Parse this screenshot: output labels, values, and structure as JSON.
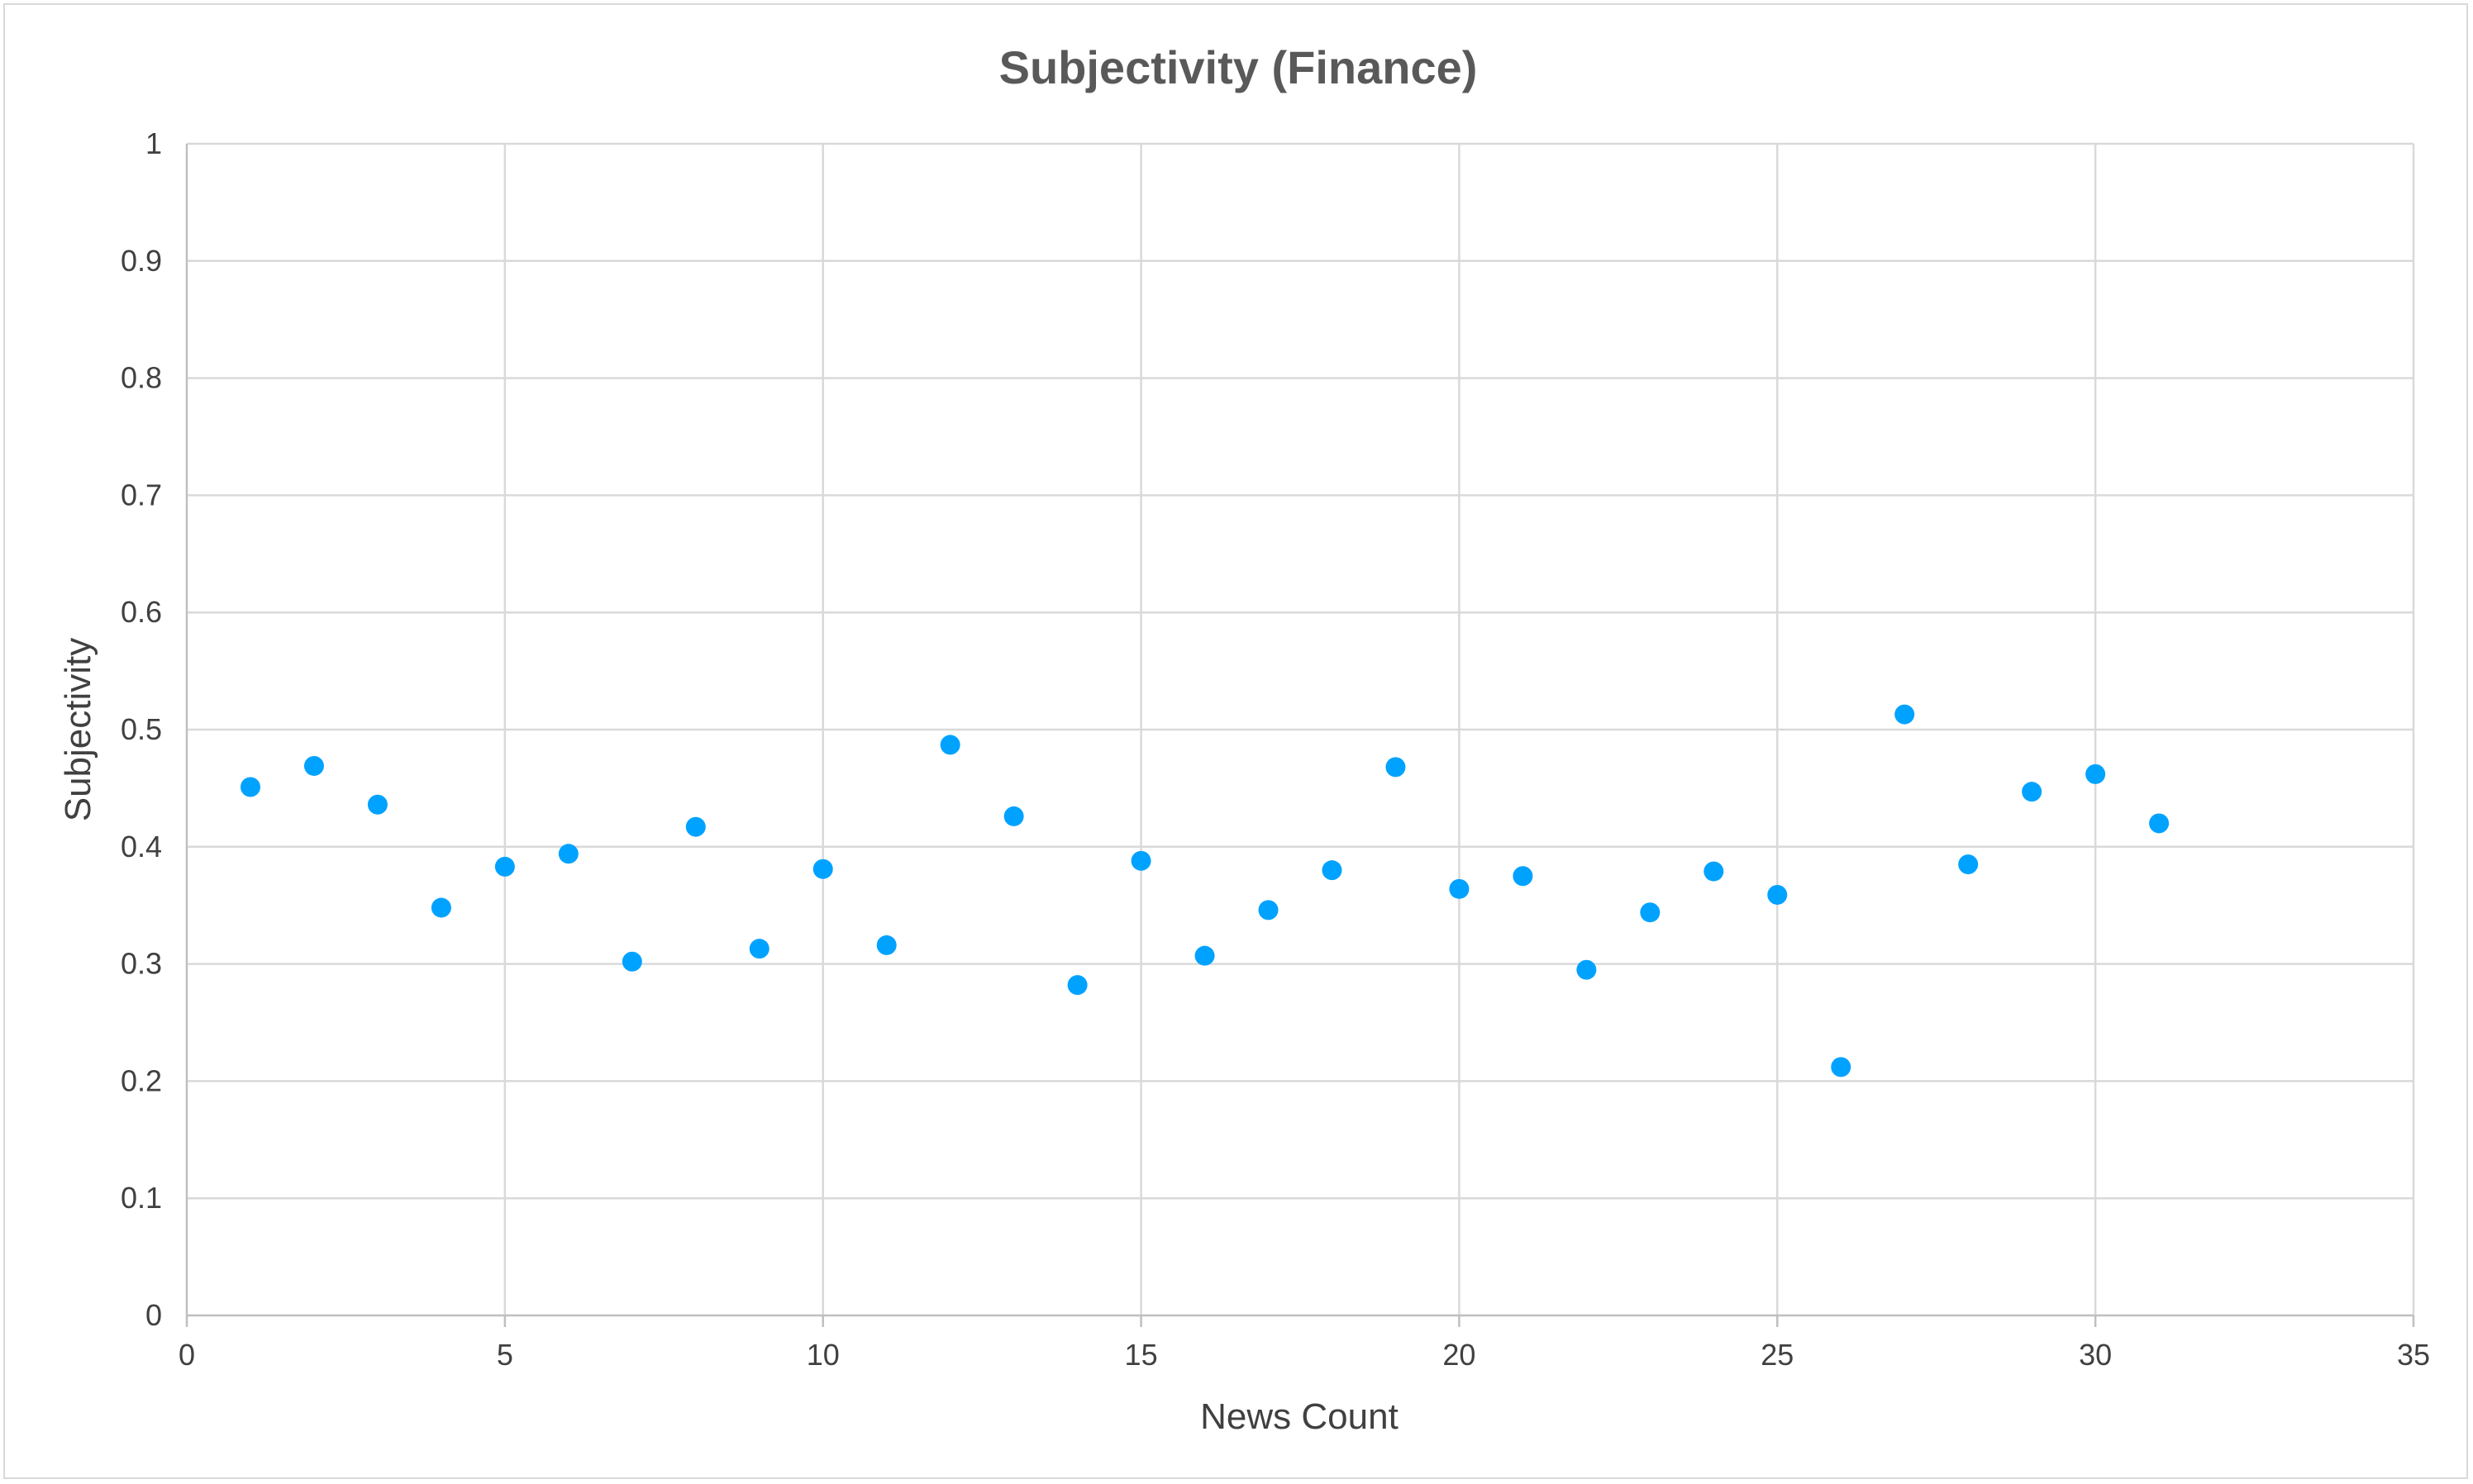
{
  "chart_data": {
    "type": "scatter",
    "title": "Subjectivity (Finance)",
    "xlabel": "News Count",
    "ylabel": "Subjectivity",
    "xlim": [
      0,
      35
    ],
    "ylim": [
      0,
      1
    ],
    "x_ticks": [
      "0",
      "5",
      "10",
      "15",
      "20",
      "25",
      "30",
      "35"
    ],
    "y_ticks": [
      "0",
      "0.1",
      "0.2",
      "0.3",
      "0.4",
      "0.5",
      "0.6",
      "0.7",
      "0.8",
      "0.9",
      "1"
    ],
    "grid": true,
    "marker_color": "#00a2ff",
    "series": [
      {
        "x": [
          1,
          2,
          3,
          4,
          5,
          6,
          7,
          8,
          9,
          10,
          11,
          12,
          13,
          14,
          15,
          16,
          17,
          18,
          19,
          20,
          21,
          22,
          23,
          24,
          25,
          26,
          27,
          28,
          29,
          30,
          31
        ],
        "values": [
          0.451,
          0.469,
          0.436,
          0.348,
          0.383,
          0.394,
          0.302,
          0.417,
          0.313,
          0.381,
          0.316,
          0.487,
          0.426,
          0.282,
          0.388,
          0.307,
          0.346,
          0.38,
          0.468,
          0.364,
          0.375,
          0.295,
          0.344,
          0.379,
          0.359,
          0.212,
          0.513,
          0.385,
          0.447,
          0.462,
          0.42
        ]
      }
    ]
  }
}
